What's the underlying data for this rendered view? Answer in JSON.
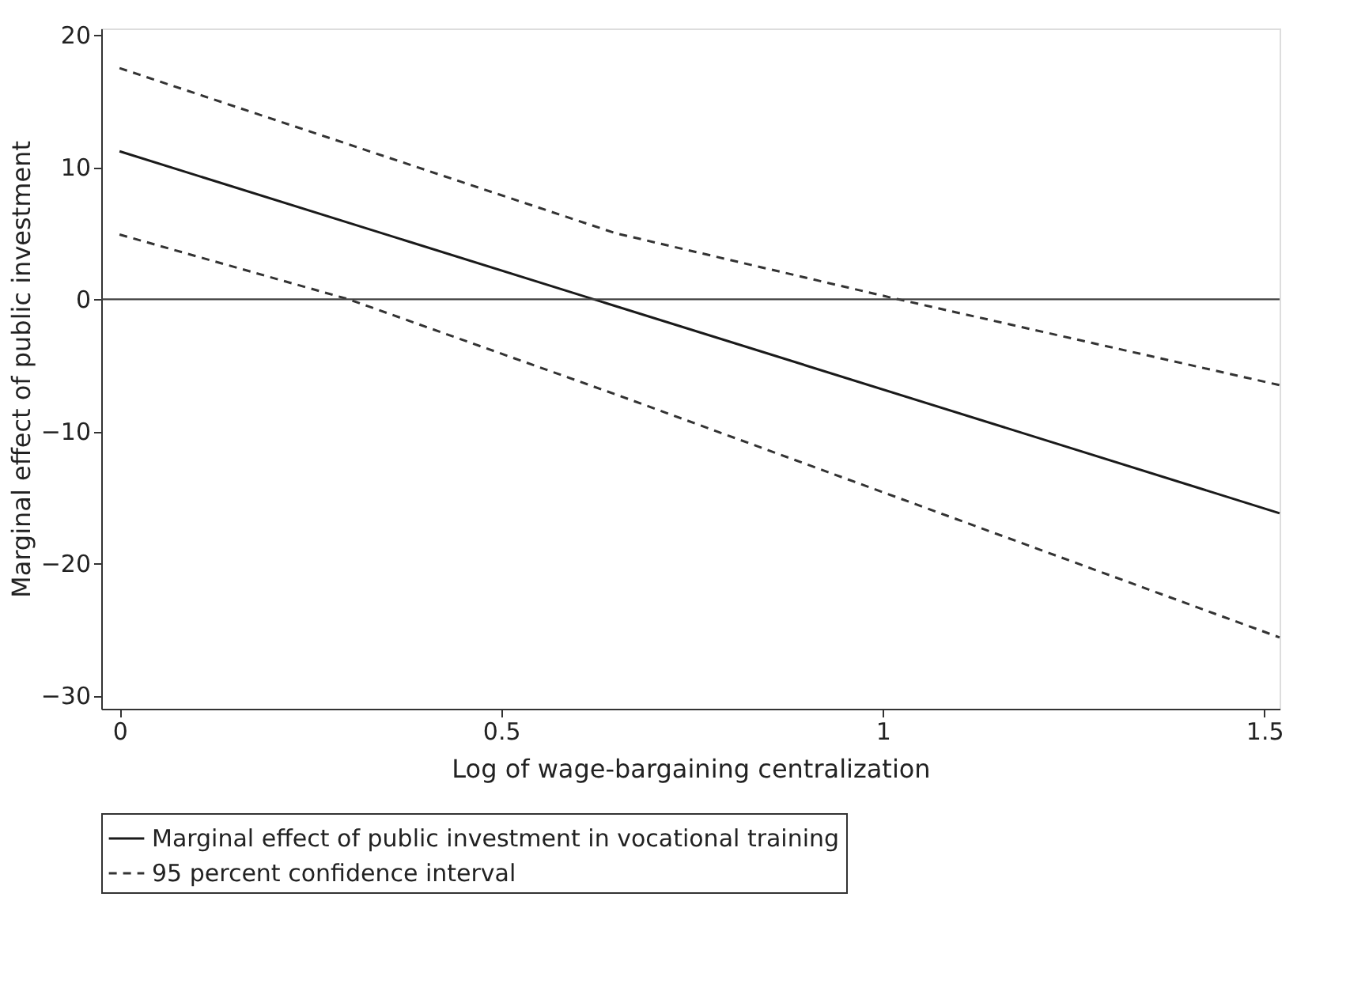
{
  "chart_data": {
    "type": "line",
    "xlabel": "Log of wage-bargaining centralization",
    "ylabel": "Marginal effect of  public investment",
    "xlim": [
      -0.024,
      1.52
    ],
    "xticks": [
      0,
      0.5,
      1,
      1.5
    ],
    "ylim": [
      -31,
      20.5
    ],
    "yticks": [
      -30,
      -20,
      -10,
      0,
      10,
      20
    ],
    "grid": false,
    "legend": "bottom",
    "marker": "none",
    "ref_lines": [
      {
        "axis": "y",
        "value": 0,
        "color": "#404040",
        "line_style": "solid"
      }
    ],
    "series": [
      {
        "name": "Marginal effect of public investment in vocational training",
        "color": "#1a1a1a",
        "line_style": "solid",
        "x": [
          0,
          1.52
        ],
        "values": [
          11.2,
          -16.2
        ]
      },
      {
        "name": "95 percent confidence interval",
        "color": "#333333",
        "line_style": "dashed",
        "x": [
          0,
          0.65,
          1.02,
          1.52
        ],
        "values": [
          17.5,
          5.0,
          0,
          -6.5
        ]
      },
      {
        "color": "#333333",
        "line_style": "dashed",
        "x": [
          0,
          0.3,
          0.65,
          1.52
        ],
        "values": [
          4.9,
          0,
          -7.2,
          -25.6
        ]
      }
    ]
  }
}
